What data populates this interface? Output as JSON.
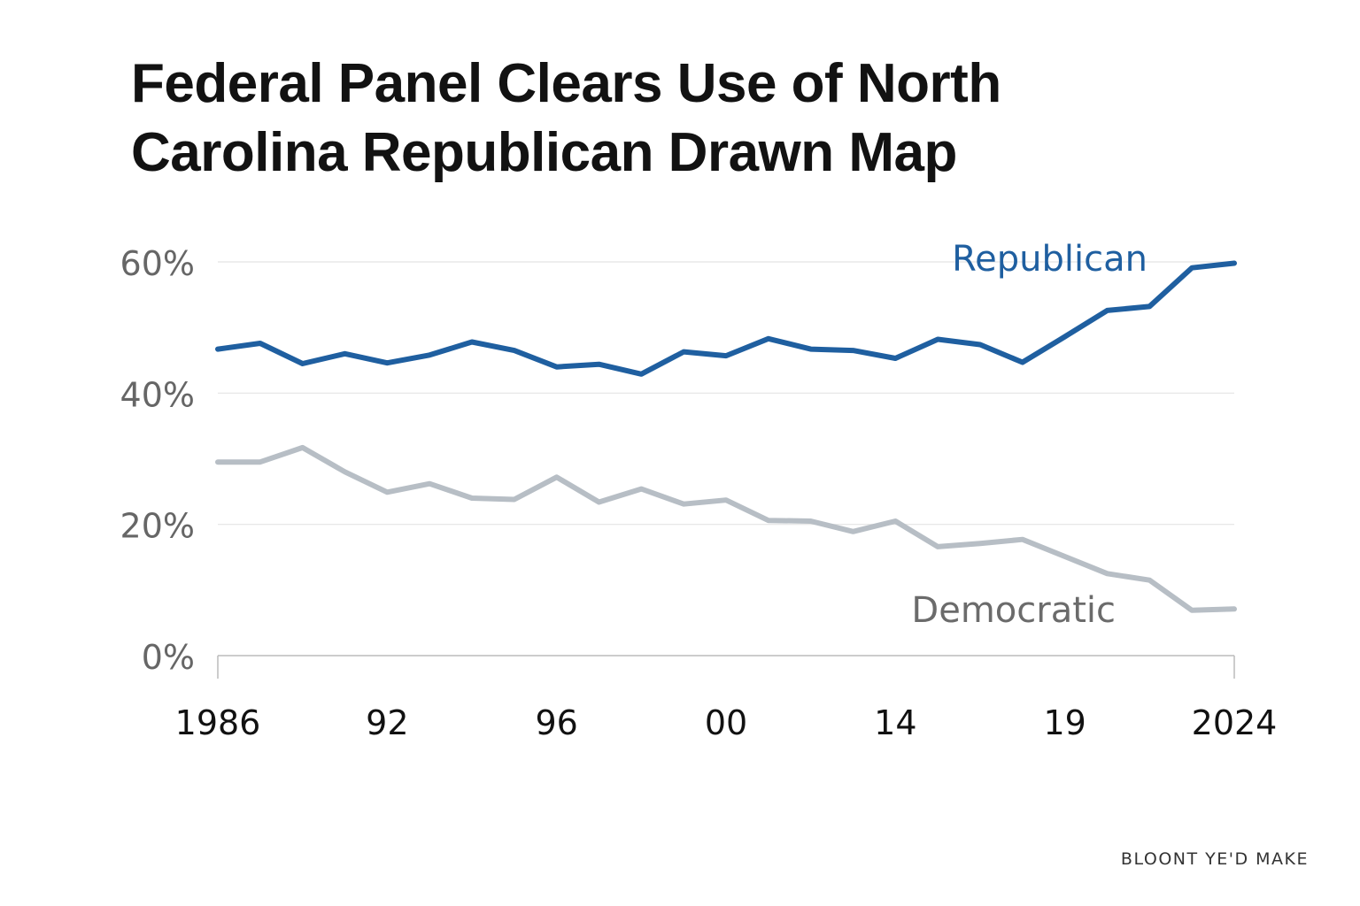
{
  "title_lines": [
    "Federal Panel Clears Use of North",
    "Carolina Republican Drawn Map"
  ],
  "credit": "BLOONT YE'D MAKE",
  "chart_data": {
    "type": "line",
    "title": "Federal Panel Clears Use of North Carolina Republican Drawn Map",
    "xlabel": "",
    "ylabel": "",
    "ylim": [
      0,
      60
    ],
    "y_ticks": [
      0,
      20,
      40,
      60
    ],
    "y_tick_labels": [
      "0%",
      "20%",
      "40%",
      "60%"
    ],
    "x_tick_labels": [
      "1986",
      "92",
      "96",
      "00",
      "14",
      "19",
      "2024"
    ],
    "grid": true,
    "colors": {
      "Republican": "#1f5fa0",
      "Democratic": "#b7bec5",
      "label_Democratic": "#6b6b6b",
      "axis": "#bbbbbb",
      "tick": "#666666"
    },
    "series": [
      {
        "name": "Republican",
        "values": [
          46.7,
          47.6,
          44.5,
          46.0,
          44.6,
          45.8,
          47.8,
          46.5,
          44.0,
          44.4,
          42.9,
          46.3,
          45.7,
          48.3,
          46.7,
          46.5,
          45.3,
          48.2,
          47.4,
          44.7,
          48.6,
          52.6,
          53.2,
          59.1,
          59.8
        ]
      },
      {
        "name": "Democratic",
        "values": [
          29.5,
          29.5,
          31.7,
          28.0,
          24.9,
          26.2,
          24.0,
          23.8,
          27.2,
          23.4,
          25.4,
          23.1,
          23.7,
          20.6,
          20.5,
          18.9,
          20.5,
          16.6,
          17.1,
          17.7,
          15.1,
          12.5,
          11.5,
          6.9,
          7.1
        ]
      }
    ]
  }
}
